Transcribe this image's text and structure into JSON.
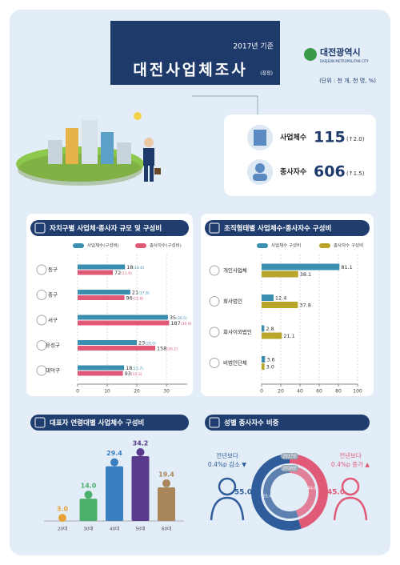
{
  "header": {
    "year": "2017년 기준",
    "title": "대전사업체조사",
    "note": "(잠정)",
    "org": "대전광역시",
    "org_en": "DAEJEON METROPOLITAN CITY",
    "unit": "(단위 : 천 개, 천 명, %)"
  },
  "summary": [
    {
      "label": "사업체수",
      "value": 115,
      "change": "(↑2.0)"
    },
    {
      "label": "종사자수",
      "value": 606,
      "change": "(↑1.5)"
    }
  ],
  "chart_data": [
    {
      "type": "hbar",
      "title": "자치구별 사업체·종사자 규모 및 구성비",
      "categories": [
        "동구",
        "중구",
        "서구",
        "유성구",
        "대덕구"
      ],
      "series": [
        {
          "name": "사업체수(구성비)",
          "color": "#3a8fb0",
          "values": [
            16.0,
            17.8,
            30.5,
            20.0,
            15.7
          ],
          "value_labels": [
            "(16.0)",
            "(17.8)",
            "(30.5)",
            "(20.0)",
            "(15.7)"
          ],
          "counts": [
            18,
            21,
            35,
            23,
            18
          ]
        },
        {
          "name": "종사자수(구성비)",
          "color": "#e05a78",
          "values": [
            11.9,
            15.8,
            30.9,
            26.2,
            15.3
          ],
          "value_labels": [
            "(11.9)",
            "(15.8)",
            "(30.9)",
            "(26.2)",
            "(15.3)"
          ],
          "counts": [
            72,
            96,
            187,
            158,
            93
          ]
        }
      ],
      "xlim": [
        0,
        37
      ],
      "xticks": [
        0,
        10,
        20,
        30
      ]
    },
    {
      "type": "hbar",
      "title": "조직형태별 사업체수·종사자수 구성비",
      "categories": [
        "개인사업체",
        "회사법인",
        "회사이외법인",
        "비법인단체"
      ],
      "series": [
        {
          "name": "사업체수 구성비",
          "color": "#3a8fb0",
          "values": [
            81.1,
            12.4,
            2.8,
            3.6
          ],
          "value_labels": [
            "81.1",
            "12.4",
            "2.8",
            "3.6"
          ]
        },
        {
          "name": "종사자수 구성비",
          "color": "#b8a52a",
          "values": [
            38.1,
            37.8,
            21.1,
            3.0
          ],
          "value_labels": [
            "38.1",
            "37.8",
            "21.1",
            "3.0"
          ]
        }
      ],
      "xlim": [
        0,
        100
      ],
      "xticks": [
        0,
        20,
        40,
        60,
        80,
        100
      ]
    },
    {
      "type": "pictogram",
      "title": "대표자 연령대별 사업체수 구성비",
      "categories": [
        "20대",
        "30대",
        "40대",
        "50대",
        "60대"
      ],
      "values": [
        3.0,
        14.0,
        29.4,
        34.2,
        19.4
      ],
      "value_labels": [
        "3.0",
        "14.0",
        "29.4",
        "34.2",
        "19.4"
      ],
      "colors": [
        "#e8a13a",
        "#4bb06a",
        "#3a7fc0",
        "#5a3a8c",
        "#a8855a"
      ],
      "ylim": [
        0,
        38
      ]
    },
    {
      "type": "donut",
      "title": "성별 종사자수 비중",
      "categories": [
        "남",
        "여"
      ],
      "colors": [
        "#2f5c9a",
        "#e05a78"
      ],
      "series": [
        {
          "name": "2017년",
          "values": [
            55.0,
            45.0
          ],
          "value_labels": [
            "55.0",
            "45.0"
          ]
        },
        {
          "name": "2016년",
          "values": [
            55.4,
            44.6
          ],
          "value_labels": [
            "55.4",
            "44.6"
          ]
        }
      ],
      "annotations": [
        [
          "전년보다",
          "0.4%p 감소 ▼"
        ],
        [
          "전년보다",
          "0.4%p 증가 ▲"
        ]
      ]
    }
  ]
}
